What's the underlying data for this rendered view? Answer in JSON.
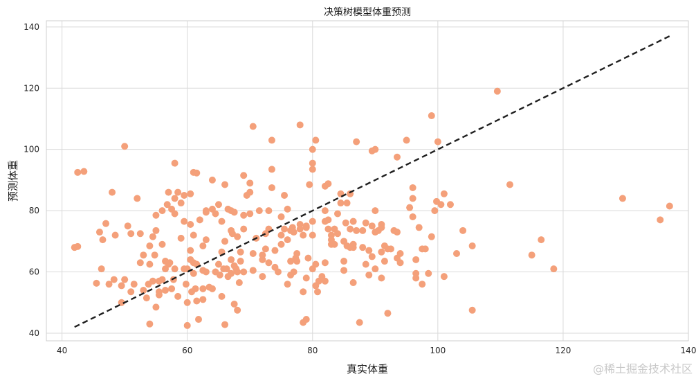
{
  "chart_data": {
    "type": "scatter",
    "title": "决策树模型体重预测",
    "xlabel": "真实体重",
    "ylabel": "预测体重",
    "xlim": [
      37.5,
      140
    ],
    "ylim": [
      37.5,
      142
    ],
    "xticks": [
      40,
      60,
      80,
      100,
      120,
      140
    ],
    "yticks": [
      40,
      60,
      80,
      100,
      120,
      140
    ],
    "grid": true,
    "legend": false,
    "point_color": "#F4A07A",
    "diagonal": {
      "x": [
        42,
        137
      ],
      "y": [
        42,
        137
      ],
      "color": "#1f1f1f",
      "style": "dashed"
    },
    "points": [
      [
        42,
        68
      ],
      [
        42.5,
        92.5
      ],
      [
        42.5,
        68.3
      ],
      [
        43.5,
        92.8
      ],
      [
        45.5,
        56.3
      ],
      [
        46,
        73
      ],
      [
        46.3,
        61
      ],
      [
        46.5,
        70.5
      ],
      [
        47,
        75.8
      ],
      [
        47.5,
        56
      ],
      [
        48,
        86
      ],
      [
        48.3,
        57.5
      ],
      [
        48.5,
        72
      ],
      [
        49.5,
        50
      ],
      [
        49.5,
        55.5
      ],
      [
        50,
        57.5
      ],
      [
        50,
        101
      ],
      [
        50.5,
        75
      ],
      [
        51,
        72.5
      ],
      [
        51,
        53.5
      ],
      [
        51.5,
        56
      ],
      [
        52,
        84
      ],
      [
        52.5,
        72.5
      ],
      [
        52.5,
        63
      ],
      [
        53,
        54
      ],
      [
        53,
        65.5
      ],
      [
        53.5,
        51.5
      ],
      [
        53.8,
        56
      ],
      [
        54,
        62.5
      ],
      [
        54,
        68.5
      ],
      [
        54,
        43
      ],
      [
        54.5,
        57
      ],
      [
        54.5,
        71.5
      ],
      [
        54.8,
        65.5
      ],
      [
        55,
        73.5
      ],
      [
        55,
        78.5
      ],
      [
        55,
        48.5
      ],
      [
        55.5,
        52.5
      ],
      [
        55.5,
        53.5
      ],
      [
        55.5,
        57
      ],
      [
        56,
        69
      ],
      [
        56,
        80
      ],
      [
        56,
        57.5
      ],
      [
        56.5,
        54
      ],
      [
        56.5,
        61
      ],
      [
        56.5,
        63.5
      ],
      [
        56.8,
        82
      ],
      [
        57,
        86
      ],
      [
        57,
        62.5
      ],
      [
        57.2,
        63
      ],
      [
        57.5,
        80.5
      ],
      [
        57.5,
        54.5
      ],
      [
        57.8,
        57.5
      ],
      [
        58,
        79
      ],
      [
        58,
        84
      ],
      [
        58,
        61
      ],
      [
        58,
        95.5
      ],
      [
        58.5,
        52
      ],
      [
        58.5,
        86
      ],
      [
        59,
        82.5
      ],
      [
        59,
        71
      ],
      [
        59.5,
        61
      ],
      [
        59.5,
        85
      ],
      [
        59.5,
        76.5
      ],
      [
        59.8,
        56
      ],
      [
        60,
        50
      ],
      [
        60,
        42.5
      ],
      [
        60,
        61
      ],
      [
        60.5,
        67
      ],
      [
        60.5,
        85.5
      ],
      [
        60.5,
        75.5
      ],
      [
        60.5,
        64
      ],
      [
        60.7,
        53.5
      ],
      [
        61,
        92.5
      ],
      [
        61,
        59.5
      ],
      [
        61,
        72
      ],
      [
        61,
        63
      ],
      [
        61.3,
        54.5
      ],
      [
        61.5,
        92.3
      ],
      [
        61.5,
        50.5
      ],
      [
        61.5,
        62.5
      ],
      [
        61.8,
        44.5
      ],
      [
        62,
        77
      ],
      [
        62.5,
        60.5
      ],
      [
        62.5,
        54.5
      ],
      [
        62.5,
        68.5
      ],
      [
        62.5,
        51
      ],
      [
        63,
        80
      ],
      [
        63,
        60
      ],
      [
        63,
        79.5
      ],
      [
        63,
        70.5
      ],
      [
        63.5,
        55
      ],
      [
        64,
        80.5
      ],
      [
        64,
        90
      ],
      [
        64,
        54.5
      ],
      [
        64.5,
        79
      ],
      [
        64.5,
        60
      ],
      [
        65,
        62.5
      ],
      [
        65,
        82
      ],
      [
        65.2,
        59
      ],
      [
        65.5,
        66.5
      ],
      [
        65.5,
        52
      ],
      [
        65.5,
        76.5
      ],
      [
        65.8,
        61
      ],
      [
        66,
        88.5
      ],
      [
        66,
        70
      ],
      [
        66,
        42.8
      ],
      [
        66.3,
        61
      ],
      [
        66.5,
        80.5
      ],
      [
        66.5,
        58.5
      ],
      [
        67,
        73.5
      ],
      [
        67,
        80
      ],
      [
        67,
        64
      ],
      [
        67,
        59.5
      ],
      [
        67.2,
        72.5
      ],
      [
        67.5,
        49.5
      ],
      [
        67.5,
        79.5
      ],
      [
        67.5,
        62
      ],
      [
        67.8,
        61
      ],
      [
        68,
        71.5
      ],
      [
        68,
        60
      ],
      [
        68,
        47.5
      ],
      [
        68.3,
        56.5
      ],
      [
        68.5,
        63.5
      ],
      [
        68.5,
        66.5
      ],
      [
        69,
        60
      ],
      [
        69,
        78.5
      ],
      [
        69,
        91.5
      ],
      [
        69,
        74
      ],
      [
        69.5,
        85
      ],
      [
        70,
        86
      ],
      [
        70,
        79
      ],
      [
        70,
        89
      ],
      [
        70.5,
        107.5
      ],
      [
        70.5,
        66
      ],
      [
        70.5,
        60.5
      ],
      [
        71,
        71
      ],
      [
        71.5,
        80
      ],
      [
        72,
        64
      ],
      [
        72,
        65.5
      ],
      [
        72,
        58.5
      ],
      [
        72.5,
        67.5
      ],
      [
        72.5,
        72.5
      ],
      [
        73,
        74
      ],
      [
        73,
        80
      ],
      [
        73,
        63
      ],
      [
        73.5,
        103
      ],
      [
        73.5,
        93.5
      ],
      [
        73.5,
        87.5
      ],
      [
        74,
        61.5
      ],
      [
        74,
        67
      ],
      [
        74.5,
        60
      ],
      [
        75,
        72
      ],
      [
        75,
        78
      ],
      [
        75,
        69
      ],
      [
        75.5,
        74
      ],
      [
        75.5,
        85
      ],
      [
        76,
        80.5
      ],
      [
        76,
        70.5
      ],
      [
        76,
        56
      ],
      [
        76.5,
        59
      ],
      [
        76.5,
        63.5
      ],
      [
        76.5,
        73.5
      ],
      [
        76.8,
        74.5
      ],
      [
        77,
        73
      ],
      [
        77,
        60
      ],
      [
        77.3,
        64.5
      ],
      [
        77.5,
        66
      ],
      [
        77.5,
        63.5
      ],
      [
        78,
        75.5
      ],
      [
        78,
        108
      ],
      [
        78,
        74
      ],
      [
        78.5,
        72
      ],
      [
        78.5,
        43.5
      ],
      [
        78.5,
        53.5
      ],
      [
        79,
        75
      ],
      [
        79,
        44.5
      ],
      [
        79,
        74.5
      ],
      [
        79,
        58
      ],
      [
        79.3,
        64.5
      ],
      [
        79.5,
        88.5
      ],
      [
        80,
        95.5
      ],
      [
        80,
        100
      ],
      [
        80,
        93.5
      ],
      [
        80,
        72
      ],
      [
        80,
        76.5
      ],
      [
        80,
        61
      ],
      [
        80.5,
        103
      ],
      [
        80.5,
        62.5
      ],
      [
        80.5,
        55.5
      ],
      [
        80.8,
        53.5
      ],
      [
        81,
        57
      ],
      [
        81.5,
        58.5
      ],
      [
        82,
        57
      ],
      [
        82,
        88
      ],
      [
        82,
        80
      ],
      [
        82,
        76.5
      ],
      [
        82,
        63
      ],
      [
        82.5,
        77
      ],
      [
        82.5,
        74
      ],
      [
        82.5,
        88.8
      ],
      [
        83,
        69
      ],
      [
        83,
        72
      ],
      [
        83,
        70.5
      ],
      [
        83.5,
        74
      ],
      [
        83.5,
        69
      ],
      [
        84,
        79
      ],
      [
        84,
        72.5
      ],
      [
        84.5,
        85.5
      ],
      [
        84.5,
        82.5
      ],
      [
        85,
        63.5
      ],
      [
        85,
        60.5
      ],
      [
        85,
        70
      ],
      [
        85.3,
        76
      ],
      [
        85.5,
        82.5
      ],
      [
        85.5,
        68.5
      ],
      [
        86,
        74
      ],
      [
        86,
        85.5
      ],
      [
        86,
        68
      ],
      [
        86.5,
        68
      ],
      [
        86.5,
        69
      ],
      [
        86.5,
        76.5
      ],
      [
        86.5,
        56.5
      ],
      [
        87,
        102.5
      ],
      [
        87,
        73.5
      ],
      [
        87.5,
        43.5
      ],
      [
        88,
        68
      ],
      [
        88,
        73.5
      ],
      [
        88.5,
        76
      ],
      [
        88.5,
        62.5
      ],
      [
        89,
        59
      ],
      [
        89,
        67
      ],
      [
        89.5,
        75
      ],
      [
        89.5,
        99.5
      ],
      [
        89.5,
        65
      ],
      [
        90,
        80
      ],
      [
        90,
        73
      ],
      [
        90,
        61
      ],
      [
        90,
        100
      ],
      [
        90.5,
        73.5
      ],
      [
        91,
        66.5
      ],
      [
        91,
        75.5
      ],
      [
        91,
        58
      ],
      [
        91,
        74.5
      ],
      [
        91.5,
        63.5
      ],
      [
        91.5,
        68.5
      ],
      [
        92,
        46.5
      ],
      [
        92,
        67.5
      ],
      [
        92.5,
        67.5
      ],
      [
        93,
        73.5
      ],
      [
        93.5,
        64.5
      ],
      [
        93.5,
        73
      ],
      [
        93.5,
        97.5
      ],
      [
        94,
        63
      ],
      [
        94,
        66
      ],
      [
        95,
        103
      ],
      [
        95.5,
        81
      ],
      [
        96,
        87.5
      ],
      [
        96,
        84
      ],
      [
        96,
        78
      ],
      [
        96.5,
        64
      ],
      [
        96.5,
        59.5
      ],
      [
        96.5,
        58
      ],
      [
        97,
        74.5
      ],
      [
        97.5,
        67.5
      ],
      [
        97.5,
        56
      ],
      [
        98,
        67.5
      ],
      [
        98.5,
        59.5
      ],
      [
        99,
        71.5
      ],
      [
        99,
        111
      ],
      [
        99.5,
        80
      ],
      [
        99.8,
        83
      ],
      [
        100,
        102.5
      ],
      [
        100.5,
        82
      ],
      [
        101,
        85.5
      ],
      [
        101,
        58.5
      ],
      [
        102,
        82
      ],
      [
        103,
        66
      ],
      [
        104,
        73.5
      ],
      [
        105.5,
        68.5
      ],
      [
        105.5,
        47.5
      ],
      [
        109.5,
        119
      ],
      [
        111.5,
        88.5
      ],
      [
        115,
        65.5
      ],
      [
        116.5,
        70.5
      ],
      [
        118.5,
        61
      ],
      [
        129.5,
        84
      ],
      [
        135.5,
        77
      ],
      [
        137,
        81.5
      ]
    ]
  },
  "watermark": "@稀土掘金技术社区"
}
